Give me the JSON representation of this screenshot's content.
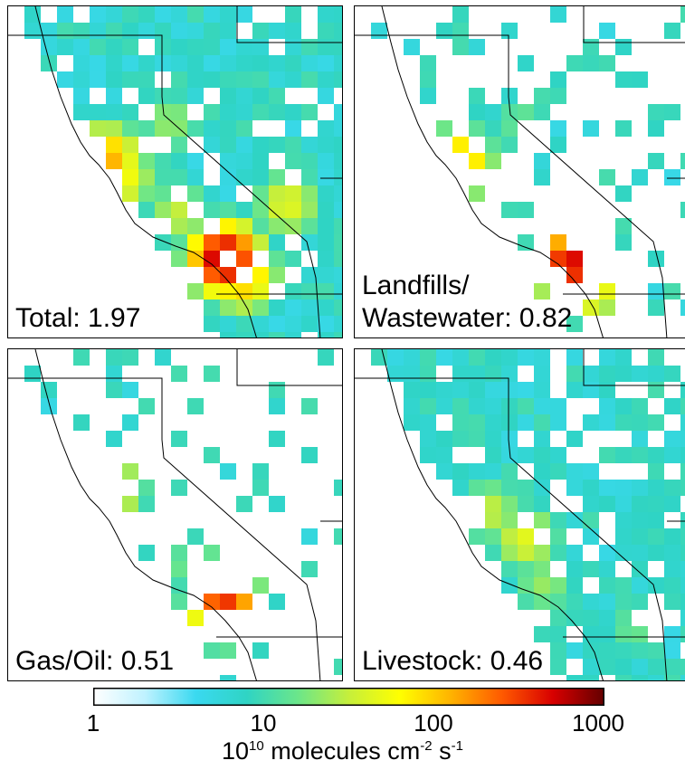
{
  "panels": [
    {
      "id": "total",
      "label_lines": [
        "Total: 1.97"
      ]
    },
    {
      "id": "landfills",
      "label_lines": [
        "Landfills/",
        "Wastewater: 0.82"
      ]
    },
    {
      "id": "gasoil",
      "label_lines": [
        "Gas/Oil: 0.51"
      ]
    },
    {
      "id": "livestock",
      "label_lines": [
        "Livestock: 0.46"
      ]
    }
  ],
  "colorbar": {
    "scale": "log",
    "range": [
      1,
      1000
    ],
    "ticks": [
      "1",
      "10",
      "100",
      "1000"
    ],
    "units_base": "10",
    "units_exp1": "10",
    "units_mid": " molecules cm",
    "units_exp2": "-2",
    "units_mid2": " s",
    "units_exp3": "-1",
    "colors": [
      "#ffffff",
      "#bff2ff",
      "#3ad9f0",
      "#2fd4c4",
      "#6be68a",
      "#c6ef3b",
      "#ffff00",
      "#ffb300",
      "#ff5a00",
      "#d80000",
      "#640000"
    ]
  }
}
